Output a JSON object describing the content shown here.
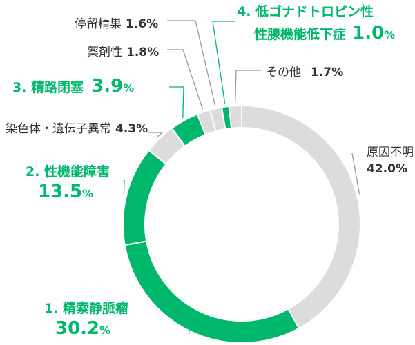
{
  "colors": {
    "highlight": "#00b86b",
    "muted": "#dcdcdc",
    "text": "#333333",
    "leader": "#999999",
    "background": "#ffffff"
  },
  "chart_data": {
    "type": "pie",
    "subtype": "donut",
    "title": "",
    "slices": [
      {
        "label": "原因不明",
        "value": 42.0,
        "value_text": "42.0%",
        "highlight": false
      },
      {
        "label": "1. 精索静脈瘤",
        "value": 30.2,
        "value_text": "30.2",
        "unit": "%",
        "highlight": true
      },
      {
        "label": "2. 性機能障害",
        "value": 13.5,
        "value_text": "13.5",
        "unit": "%",
        "highlight": true
      },
      {
        "label": "染色体・遺伝子異常",
        "value": 4.3,
        "value_text": "4.3%",
        "highlight": false
      },
      {
        "label": "3. 精路閉塞",
        "value": 3.9,
        "value_text": "3.9",
        "unit": "%",
        "highlight": true
      },
      {
        "label": "薬剤性",
        "value": 1.8,
        "value_text": "1.8%",
        "highlight": false
      },
      {
        "label": "停留精巣",
        "value": 1.6,
        "value_text": "1.6%",
        "highlight": false
      },
      {
        "label": "4. 低ゴナドトロピン性",
        "label_line2": "性腺機能低下症",
        "value": 1.0,
        "value_text": "1.0",
        "unit": "%",
        "highlight": true
      },
      {
        "label": "その他",
        "value": 1.7,
        "value_text": "1.7%",
        "highlight": false
      }
    ]
  }
}
